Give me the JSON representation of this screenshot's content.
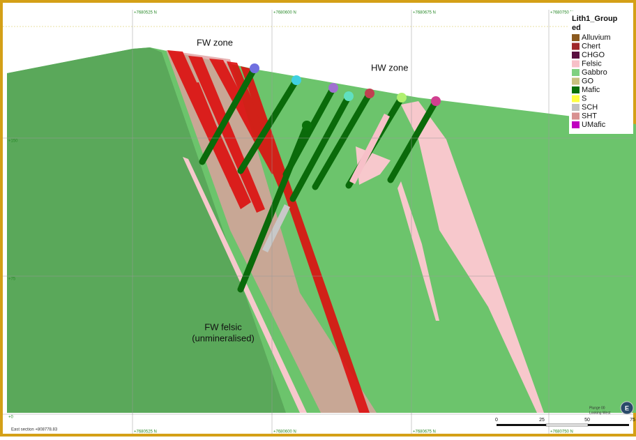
{
  "window": {
    "section_label": "East section +808778.83"
  },
  "grid": {
    "northings_top": [
      "+7680525 N",
      "+7680600 N",
      "+7680675 N",
      "+7680750 N"
    ],
    "northings_bottom": [
      "+7680525 N",
      "+7680600 N",
      "+7680675 N",
      "+7680750 N"
    ],
    "elevations": [
      "+150",
      "+75",
      "+0"
    ]
  },
  "annotations": {
    "fw_zone": "FW zone",
    "hw_zone": "HW zone",
    "fw_felsic": [
      "FW felsic",
      "(unmineralised)"
    ]
  },
  "legend": {
    "title_lines": [
      "Lith1_Group",
      "ed"
    ],
    "items": [
      {
        "label": "Alluvium",
        "color": "#8b5a1e"
      },
      {
        "label": "Chert",
        "color": "#a0282a"
      },
      {
        "label": "CHGO",
        "color": "#5a1040"
      },
      {
        "label": "Felsic",
        "color": "#f7c0c8"
      },
      {
        "label": "Gabbro",
        "color": "#80d080"
      },
      {
        "label": "GO",
        "color": "#c8c080"
      },
      {
        "label": "Mafic",
        "color": "#0a700a"
      },
      {
        "label": "S",
        "color": "#ffff40"
      },
      {
        "label": "SCH",
        "color": "#c0c0c0"
      },
      {
        "label": "SHT",
        "color": "#d89090"
      },
      {
        "label": "UMafic",
        "color": "#c000c0"
      }
    ]
  },
  "view": {
    "plunge": "Plunge 00",
    "direction": "Looking West",
    "compass": "E"
  },
  "scale_bar": {
    "labels": [
      "0",
      "25",
      "50",
      "75"
    ]
  }
}
